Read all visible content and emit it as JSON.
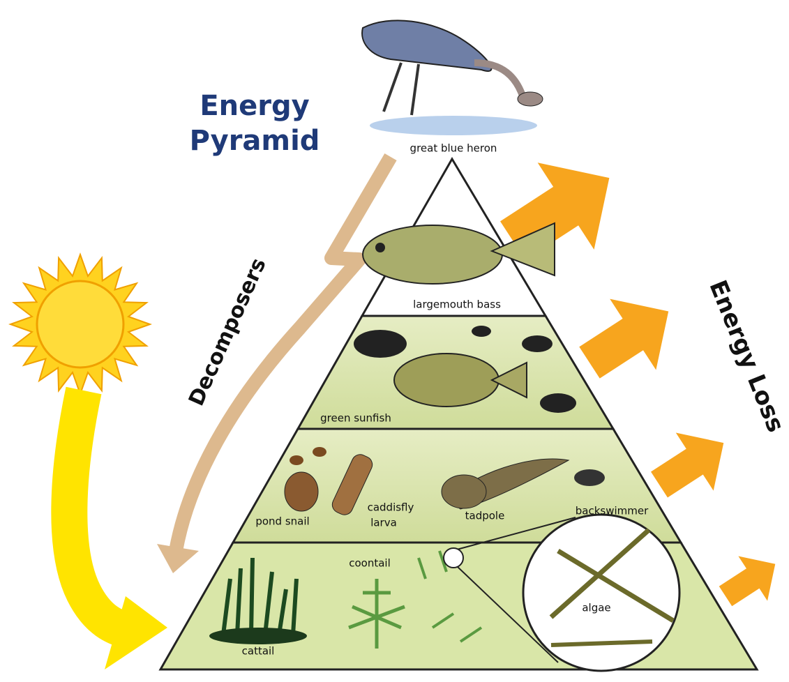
{
  "title": {
    "lines": [
      "Energy",
      "Pyramid"
    ]
  },
  "side_labels": {
    "decomposers": "Decomposers",
    "energy_loss": "Energy Loss"
  },
  "organisms": [
    {
      "lines": [
        "great blue heron"
      ]
    },
    {
      "lines": [
        "largemouth bass"
      ]
    },
    {
      "lines": [
        "green sunfish"
      ]
    },
    {
      "lines": [
        "pond snail"
      ]
    },
    {
      "lines": [
        "caddisfly",
        "larva"
      ]
    },
    {
      "lines": [
        "tadpole"
      ]
    },
    {
      "lines": [
        "backswimmer"
      ]
    },
    {
      "lines": [
        "coontail"
      ]
    },
    {
      "lines": [
        "cattail"
      ]
    },
    {
      "lines": [
        "algae"
      ]
    }
  ]
}
